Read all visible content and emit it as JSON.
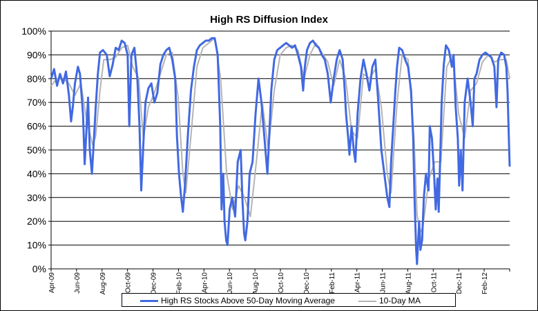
{
  "chart_data": {
    "type": "line",
    "title": "High RS Diffusion Index",
    "xlabel": "",
    "ylabel": "",
    "ylim": [
      0,
      100
    ],
    "y_unit": "%",
    "y_ticks": [
      "0%",
      "10%",
      "20%",
      "30%",
      "40%",
      "50%",
      "60%",
      "70%",
      "80%",
      "90%",
      "100%"
    ],
    "x_tick_labels": [
      "Apr-09",
      "Jun-09",
      "Aug-09",
      "Oct-09",
      "Dec-09",
      "Feb-10",
      "Apr-10",
      "Jun-10",
      "Aug-10",
      "Oct-10",
      "Dec-10",
      "Feb-11",
      "Apr-11",
      "Jun-11",
      "Aug-11",
      "Oct-11",
      "Dec-11",
      "Feb-12"
    ],
    "x_range": [
      "2009-04-01",
      "2012-03-15"
    ],
    "grid": true,
    "legend_position": "bottom",
    "series": [
      {
        "name": "High RS Stocks Above 50-Day Moving Average",
        "color": "#4169E1",
        "points": [
          [
            "2009-04-01",
            80
          ],
          [
            "2009-04-08",
            84
          ],
          [
            "2009-04-15",
            77
          ],
          [
            "2009-04-22",
            82
          ],
          [
            "2009-04-29",
            78
          ],
          [
            "2009-05-06",
            83
          ],
          [
            "2009-05-13",
            73
          ],
          [
            "2009-05-18",
            62
          ],
          [
            "2009-05-22",
            68
          ],
          [
            "2009-05-27",
            78
          ],
          [
            "2009-06-03",
            85
          ],
          [
            "2009-06-08",
            82
          ],
          [
            "2009-06-15",
            65
          ],
          [
            "2009-06-19",
            44
          ],
          [
            "2009-06-23",
            58
          ],
          [
            "2009-06-27",
            72
          ],
          [
            "2009-07-01",
            50
          ],
          [
            "2009-07-06",
            40
          ],
          [
            "2009-07-10",
            52
          ],
          [
            "2009-07-15",
            68
          ],
          [
            "2009-07-20",
            82
          ],
          [
            "2009-07-25",
            91
          ],
          [
            "2009-08-01",
            92
          ],
          [
            "2009-08-10",
            90
          ],
          [
            "2009-08-17",
            81
          ],
          [
            "2009-08-24",
            86
          ],
          [
            "2009-08-31",
            93
          ],
          [
            "2009-09-07",
            92
          ],
          [
            "2009-09-14",
            96
          ],
          [
            "2009-09-21",
            95
          ],
          [
            "2009-09-28",
            90
          ],
          [
            "2009-10-02",
            60
          ],
          [
            "2009-10-07",
            90
          ],
          [
            "2009-10-14",
            93
          ],
          [
            "2009-10-21",
            80
          ],
          [
            "2009-10-26",
            60
          ],
          [
            "2009-10-30",
            33
          ],
          [
            "2009-11-04",
            52
          ],
          [
            "2009-11-09",
            70
          ],
          [
            "2009-11-16",
            76
          ],
          [
            "2009-11-23",
            78
          ],
          [
            "2009-11-30",
            70
          ],
          [
            "2009-12-07",
            74
          ],
          [
            "2009-12-14",
            86
          ],
          [
            "2009-12-21",
            90
          ],
          [
            "2009-12-28",
            92
          ],
          [
            "2010-01-04",
            93
          ],
          [
            "2010-01-11",
            88
          ],
          [
            "2010-01-18",
            80
          ],
          [
            "2010-01-22",
            56
          ],
          [
            "2010-01-27",
            40
          ],
          [
            "2010-02-01",
            30
          ],
          [
            "2010-02-05",
            24
          ],
          [
            "2010-02-10",
            35
          ],
          [
            "2010-02-17",
            57
          ],
          [
            "2010-02-24",
            75
          ],
          [
            "2010-03-03",
            85
          ],
          [
            "2010-03-10",
            92
          ],
          [
            "2010-03-17",
            94
          ],
          [
            "2010-03-24",
            95
          ],
          [
            "2010-03-31",
            96
          ],
          [
            "2010-04-07",
            96
          ],
          [
            "2010-04-14",
            97
          ],
          [
            "2010-04-21",
            97
          ],
          [
            "2010-04-28",
            90
          ],
          [
            "2010-05-04",
            60
          ],
          [
            "2010-05-07",
            25
          ],
          [
            "2010-05-11",
            40
          ],
          [
            "2010-05-14",
            20
          ],
          [
            "2010-05-18",
            12
          ],
          [
            "2010-05-21",
            10
          ],
          [
            "2010-05-26",
            25
          ],
          [
            "2010-06-01",
            30
          ],
          [
            "2010-06-08",
            22
          ],
          [
            "2010-06-14",
            45
          ],
          [
            "2010-06-21",
            50
          ],
          [
            "2010-06-25",
            30
          ],
          [
            "2010-06-29",
            15
          ],
          [
            "2010-07-02",
            12
          ],
          [
            "2010-07-07",
            20
          ],
          [
            "2010-07-12",
            40
          ],
          [
            "2010-07-19",
            45
          ],
          [
            "2010-07-26",
            65
          ],
          [
            "2010-08-02",
            80
          ],
          [
            "2010-08-09",
            70
          ],
          [
            "2010-08-16",
            55
          ],
          [
            "2010-08-23",
            40
          ],
          [
            "2010-08-27",
            55
          ],
          [
            "2010-09-01",
            75
          ],
          [
            "2010-09-08",
            88
          ],
          [
            "2010-09-15",
            92
          ],
          [
            "2010-09-22",
            93
          ],
          [
            "2010-09-29",
            94
          ],
          [
            "2010-10-06",
            95
          ],
          [
            "2010-10-13",
            94
          ],
          [
            "2010-10-20",
            93
          ],
          [
            "2010-10-27",
            94
          ],
          [
            "2010-11-03",
            90
          ],
          [
            "2010-11-10",
            85
          ],
          [
            "2010-11-15",
            75
          ],
          [
            "2010-11-19",
            85
          ],
          [
            "2010-11-24",
            92
          ],
          [
            "2010-12-01",
            95
          ],
          [
            "2010-12-08",
            96
          ],
          [
            "2010-12-15",
            94
          ],
          [
            "2010-12-22",
            93
          ],
          [
            "2010-12-29",
            90
          ],
          [
            "2011-01-05",
            88
          ],
          [
            "2011-01-12",
            82
          ],
          [
            "2011-01-19",
            70
          ],
          [
            "2011-01-26",
            80
          ],
          [
            "2011-02-02",
            88
          ],
          [
            "2011-02-09",
            92
          ],
          [
            "2011-02-16",
            88
          ],
          [
            "2011-02-21",
            75
          ],
          [
            "2011-02-24",
            65
          ],
          [
            "2011-03-01",
            55
          ],
          [
            "2011-03-04",
            48
          ],
          [
            "2011-03-09",
            60
          ],
          [
            "2011-03-14",
            50
          ],
          [
            "2011-03-18",
            45
          ],
          [
            "2011-03-23",
            65
          ],
          [
            "2011-03-30",
            80
          ],
          [
            "2011-04-06",
            88
          ],
          [
            "2011-04-13",
            82
          ],
          [
            "2011-04-20",
            75
          ],
          [
            "2011-04-27",
            85
          ],
          [
            "2011-05-04",
            88
          ],
          [
            "2011-05-11",
            70
          ],
          [
            "2011-05-18",
            50
          ],
          [
            "2011-05-25",
            40
          ],
          [
            "2011-06-01",
            30
          ],
          [
            "2011-06-06",
            26
          ],
          [
            "2011-06-10",
            45
          ],
          [
            "2011-06-15",
            60
          ],
          [
            "2011-06-20",
            75
          ],
          [
            "2011-06-24",
            85
          ],
          [
            "2011-06-29",
            93
          ],
          [
            "2011-07-06",
            92
          ],
          [
            "2011-07-13",
            88
          ],
          [
            "2011-07-20",
            85
          ],
          [
            "2011-07-27",
            75
          ],
          [
            "2011-08-01",
            55
          ],
          [
            "2011-08-04",
            30
          ],
          [
            "2011-08-08",
            8
          ],
          [
            "2011-08-10",
            2
          ],
          [
            "2011-08-15",
            20
          ],
          [
            "2011-08-18",
            8
          ],
          [
            "2011-08-22",
            12
          ],
          [
            "2011-08-26",
            30
          ],
          [
            "2011-08-31",
            40
          ],
          [
            "2011-09-06",
            33
          ],
          [
            "2011-09-09",
            60
          ],
          [
            "2011-09-14",
            55
          ],
          [
            "2011-09-19",
            40
          ],
          [
            "2011-09-23",
            25
          ],
          [
            "2011-09-27",
            38
          ],
          [
            "2011-09-30",
            24
          ],
          [
            "2011-10-04",
            50
          ],
          [
            "2011-10-07",
            70
          ],
          [
            "2011-10-12",
            86
          ],
          [
            "2011-10-17",
            94
          ],
          [
            "2011-10-24",
            92
          ],
          [
            "2011-10-31",
            85
          ],
          [
            "2011-11-04",
            90
          ],
          [
            "2011-11-09",
            68
          ],
          [
            "2011-11-14",
            55
          ],
          [
            "2011-11-17",
            35
          ],
          [
            "2011-11-21",
            50
          ],
          [
            "2011-11-25",
            33
          ],
          [
            "2011-11-30",
            70
          ],
          [
            "2011-12-07",
            80
          ],
          [
            "2011-12-14",
            70
          ],
          [
            "2011-12-19",
            60
          ],
          [
            "2011-12-23",
            80
          ],
          [
            "2011-12-28",
            82
          ],
          [
            "2012-01-04",
            88
          ],
          [
            "2012-01-11",
            90
          ],
          [
            "2012-01-18",
            91
          ],
          [
            "2012-01-25",
            90
          ],
          [
            "2012-02-01",
            89
          ],
          [
            "2012-02-08",
            85
          ],
          [
            "2012-02-13",
            68
          ],
          [
            "2012-02-17",
            88
          ],
          [
            "2012-02-24",
            91
          ],
          [
            "2012-03-02",
            90
          ],
          [
            "2012-03-07",
            85
          ],
          [
            "2012-03-10",
            75
          ],
          [
            "2012-03-13",
            55
          ],
          [
            "2012-03-15",
            43
          ]
        ]
      },
      {
        "name": "10-Day MA",
        "color": "#B4B4B4",
        "points": [
          [
            "2009-04-01",
            77
          ],
          [
            "2009-04-15",
            80
          ],
          [
            "2009-04-29",
            80
          ],
          [
            "2009-05-13",
            78
          ],
          [
            "2009-05-27",
            73
          ],
          [
            "2009-06-10",
            78
          ],
          [
            "2009-06-24",
            62
          ],
          [
            "2009-07-08",
            52
          ],
          [
            "2009-07-15",
            56
          ],
          [
            "2009-07-25",
            75
          ],
          [
            "2009-08-03",
            88
          ],
          [
            "2009-08-17",
            88
          ],
          [
            "2009-08-31",
            89
          ],
          [
            "2009-09-14",
            93
          ],
          [
            "2009-09-28",
            94
          ],
          [
            "2009-10-10",
            85
          ],
          [
            "2009-10-24",
            80
          ],
          [
            "2009-11-04",
            55
          ],
          [
            "2009-11-16",
            68
          ],
          [
            "2009-11-30",
            74
          ],
          [
            "2009-12-14",
            82
          ],
          [
            "2009-12-28",
            90
          ],
          [
            "2010-01-11",
            91
          ],
          [
            "2010-01-25",
            72
          ],
          [
            "2010-02-05",
            40
          ],
          [
            "2010-02-12",
            32
          ],
          [
            "2010-02-26",
            60
          ],
          [
            "2010-03-10",
            85
          ],
          [
            "2010-03-24",
            93
          ],
          [
            "2010-04-07",
            95
          ],
          [
            "2010-04-21",
            97
          ],
          [
            "2010-05-05",
            80
          ],
          [
            "2010-05-19",
            40
          ],
          [
            "2010-06-02",
            25
          ],
          [
            "2010-06-16",
            35
          ],
          [
            "2010-06-30",
            30
          ],
          [
            "2010-07-14",
            22
          ],
          [
            "2010-07-28",
            45
          ],
          [
            "2010-08-11",
            70
          ],
          [
            "2010-08-25",
            50
          ],
          [
            "2010-09-08",
            75
          ],
          [
            "2010-09-22",
            90
          ],
          [
            "2010-10-06",
            93
          ],
          [
            "2010-10-20",
            94
          ],
          [
            "2010-11-03",
            92
          ],
          [
            "2010-11-17",
            80
          ],
          [
            "2010-12-01",
            90
          ],
          [
            "2010-12-15",
            95
          ],
          [
            "2010-12-29",
            91
          ],
          [
            "2011-01-12",
            87
          ],
          [
            "2011-01-26",
            77
          ],
          [
            "2011-02-09",
            88
          ],
          [
            "2011-02-23",
            80
          ],
          [
            "2011-03-09",
            58
          ],
          [
            "2011-03-23",
            55
          ],
          [
            "2011-04-06",
            82
          ],
          [
            "2011-04-20",
            80
          ],
          [
            "2011-05-04",
            84
          ],
          [
            "2011-05-18",
            68
          ],
          [
            "2011-06-01",
            40
          ],
          [
            "2011-06-10",
            32
          ],
          [
            "2011-06-24",
            70
          ],
          [
            "2011-07-06",
            90
          ],
          [
            "2011-07-20",
            88
          ],
          [
            "2011-08-03",
            55
          ],
          [
            "2011-08-10",
            23
          ],
          [
            "2011-08-17",
            15
          ],
          [
            "2011-08-24",
            18
          ],
          [
            "2011-09-07",
            38
          ],
          [
            "2011-09-21",
            45
          ],
          [
            "2011-10-05",
            45
          ],
          [
            "2011-10-19",
            85
          ],
          [
            "2011-11-02",
            90
          ],
          [
            "2011-11-16",
            65
          ],
          [
            "2011-11-30",
            55
          ],
          [
            "2011-12-14",
            75
          ],
          [
            "2011-12-28",
            78
          ],
          [
            "2012-01-11",
            87
          ],
          [
            "2012-01-25",
            90
          ],
          [
            "2012-02-08",
            87
          ],
          [
            "2012-02-22",
            88
          ],
          [
            "2012-03-07",
            88
          ],
          [
            "2012-03-15",
            80
          ]
        ]
      }
    ]
  }
}
